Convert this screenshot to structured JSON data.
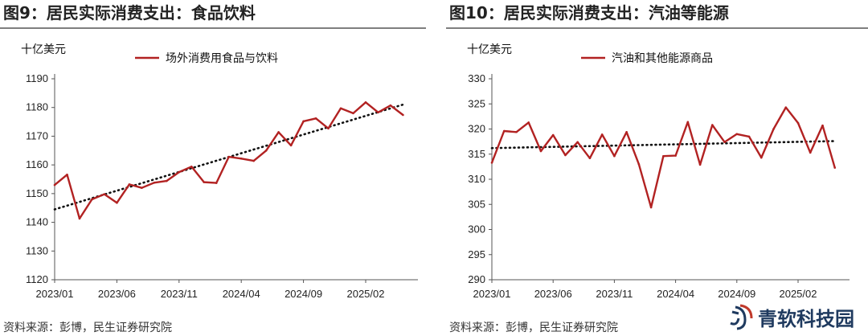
{
  "charts": [
    {
      "title": "图9：居民实际消费支出：食品饮料",
      "source": "资料来源：彭博，民生证券研究院",
      "unit": "十亿美元"
    },
    {
      "title": "图10：居民实际消费支出：汽油等能源",
      "source": "资料来源：彭博，民生证券研究院",
      "unit": "十亿美元"
    }
  ],
  "watermark": {
    "text": "青软科技园",
    "logo": "qingruan-logo-icon"
  },
  "colors": {
    "series": "#b22222",
    "trend": "#111111",
    "axis": "#555555",
    "title_rule": "#7f7f7f"
  },
  "chart_data": [
    {
      "type": "line",
      "title": "图9：居民实际消费支出：食品饮料",
      "ylabel": "十亿美元",
      "ylim": [
        1120,
        1190
      ],
      "yticks": [
        "1120",
        "1130",
        "1140",
        "1150",
        "1160",
        "1170",
        "1180",
        "1190"
      ],
      "xticks": [
        "2023/01",
        "2023/06",
        "2023/11",
        "2024/04",
        "2024/09",
        "2025/02"
      ],
      "x": [
        "2023/01",
        "2023/02",
        "2023/03",
        "2023/04",
        "2023/05",
        "2023/06",
        "2023/07",
        "2023/08",
        "2023/09",
        "2023/10",
        "2023/11",
        "2023/12",
        "2024/01",
        "2024/02",
        "2024/03",
        "2024/04",
        "2024/05",
        "2024/06",
        "2024/07",
        "2024/08",
        "2024/09",
        "2024/10",
        "2024/11",
        "2024/12",
        "2025/01",
        "2025/02",
        "2025/03",
        "2025/04",
        "2025/05"
      ],
      "series": [
        {
          "name": "场外消费用食品与饮料",
          "values": [
            1153.0,
            1156.6,
            1141.3,
            1148.0,
            1149.8,
            1146.8,
            1153.2,
            1152.0,
            1153.8,
            1154.4,
            1157.5,
            1159.4,
            1154.0,
            1153.7,
            1162.8,
            1162.2,
            1161.4,
            1165.0,
            1171.4,
            1166.8,
            1175.2,
            1176.2,
            1172.7,
            1179.7,
            1178.0,
            1181.8,
            1178.3,
            1180.7,
            1177.4
          ]
        }
      ],
      "trendline": {
        "style": "dotted",
        "start": 1144.5,
        "end": 1181.0
      },
      "legend": "top-center",
      "grid": false
    },
    {
      "type": "line",
      "title": "图10：居民实际消费支出：汽油等能源",
      "ylabel": "十亿美元",
      "ylim": [
        290,
        330
      ],
      "yticks": [
        "290",
        "295",
        "300",
        "305",
        "310",
        "315",
        "320",
        "325",
        "330"
      ],
      "xticks": [
        "2023/01",
        "2023/06",
        "2023/11",
        "2024/04",
        "2024/09",
        "2025/02"
      ],
      "x": [
        "2023/01",
        "2023/02",
        "2023/03",
        "2023/04",
        "2023/05",
        "2023/06",
        "2023/07",
        "2023/08",
        "2023/09",
        "2023/10",
        "2023/11",
        "2023/12",
        "2024/01",
        "2024/02",
        "2024/03",
        "2024/04",
        "2024/05",
        "2024/06",
        "2024/07",
        "2024/08",
        "2024/09",
        "2024/10",
        "2024/11",
        "2024/12",
        "2025/01",
        "2025/02",
        "2025/03",
        "2025/04",
        "2025/05"
      ],
      "series": [
        {
          "name": "汽油和其他能源商品",
          "values": [
            313.3,
            319.6,
            319.4,
            321.3,
            315.6,
            318.8,
            314.8,
            317.4,
            314.2,
            318.9,
            314.6,
            319.4,
            313.0,
            304.4,
            314.6,
            314.7,
            321.4,
            312.9,
            320.8,
            317.4,
            319.0,
            318.5,
            314.3,
            320.0,
            324.3,
            321.2,
            315.3,
            320.7,
            312.3
          ]
        }
      ],
      "trendline": {
        "style": "dotted",
        "start": 316.2,
        "end": 317.6
      },
      "legend": "top-center",
      "grid": false
    }
  ]
}
